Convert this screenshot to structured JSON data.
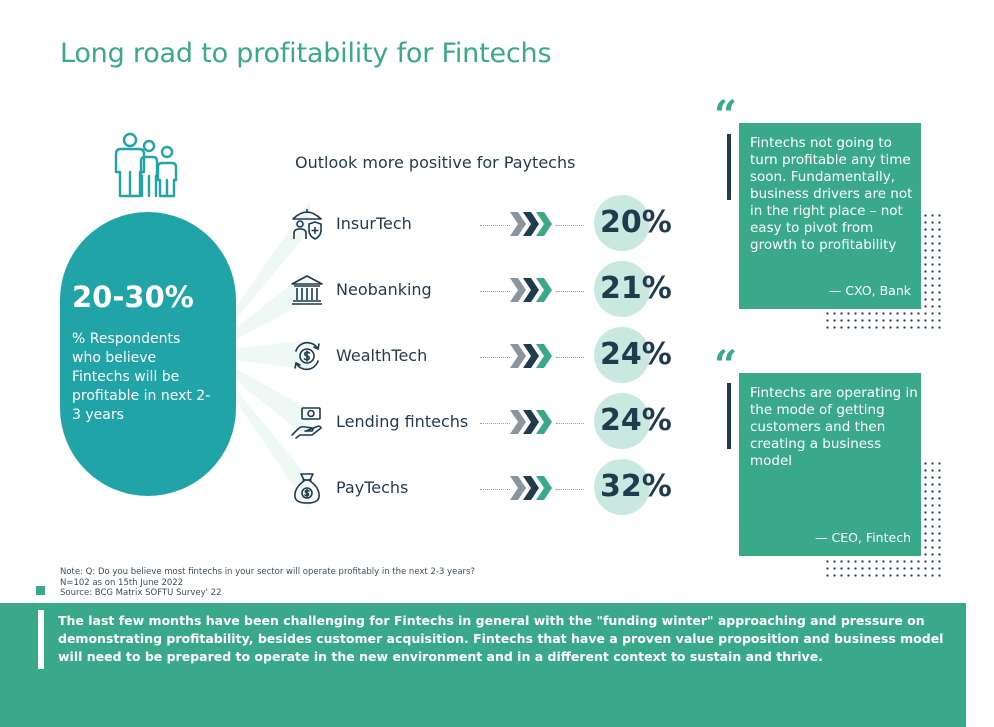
{
  "title": "Long road to profitability for Fintechs",
  "left_panel": {
    "icon": "people-icon",
    "big_stat": "20-30%",
    "description": "% Respondents who believe Fintechs will be profitable in next 2-3 years"
  },
  "outlook_heading": "Outlook more positive for Paytechs",
  "segments": [
    {
      "label": "InsurTech",
      "value": "20%",
      "icon": "umbrella-shield-icon"
    },
    {
      "label": "Neobanking",
      "value": "21%",
      "icon": "bank-icon"
    },
    {
      "label": "WealthTech",
      "value": "24%",
      "icon": "coin-cycle-icon"
    },
    {
      "label": "Lending fintechs",
      "value": "24%",
      "icon": "hand-money-icon"
    },
    {
      "label": "PayTechs",
      "value": "32%",
      "icon": "money-bag-icon"
    }
  ],
  "quotes": [
    {
      "text": "Fintechs not going to turn profitable any time soon. Fundamentally, business drivers are not in the right place – not easy to pivot from growth to profitability",
      "author": "— CXO, Bank"
    },
    {
      "text": "Fintechs are operating in the mode of getting customers and then creating a business model",
      "author": "— CEO, Fintech"
    }
  ],
  "notes": {
    "line1": "Note: Q: Do you believe most fintechs in your sector will operate profitably in the next 2-3 years?",
    "line2": "N=102 as on 15th June 2022",
    "line3": "Source: BCG Matrix SOFTU Survey' 22"
  },
  "banner_text": "The last few months have been challenging for Fintechs in general with the \"funding winter\" approaching and pressure on demonstrating profitability, besides customer acquisition. Fintechs that have a proven value proposition and business model will need to be prepared to operate in the new environment and in a different context to sustain and thrive.",
  "colors": {
    "accent_green": "#3aa98a",
    "teal": "#21a4a8",
    "light_mint": "#c8e8e0",
    "navy": "#1f3b4d"
  }
}
